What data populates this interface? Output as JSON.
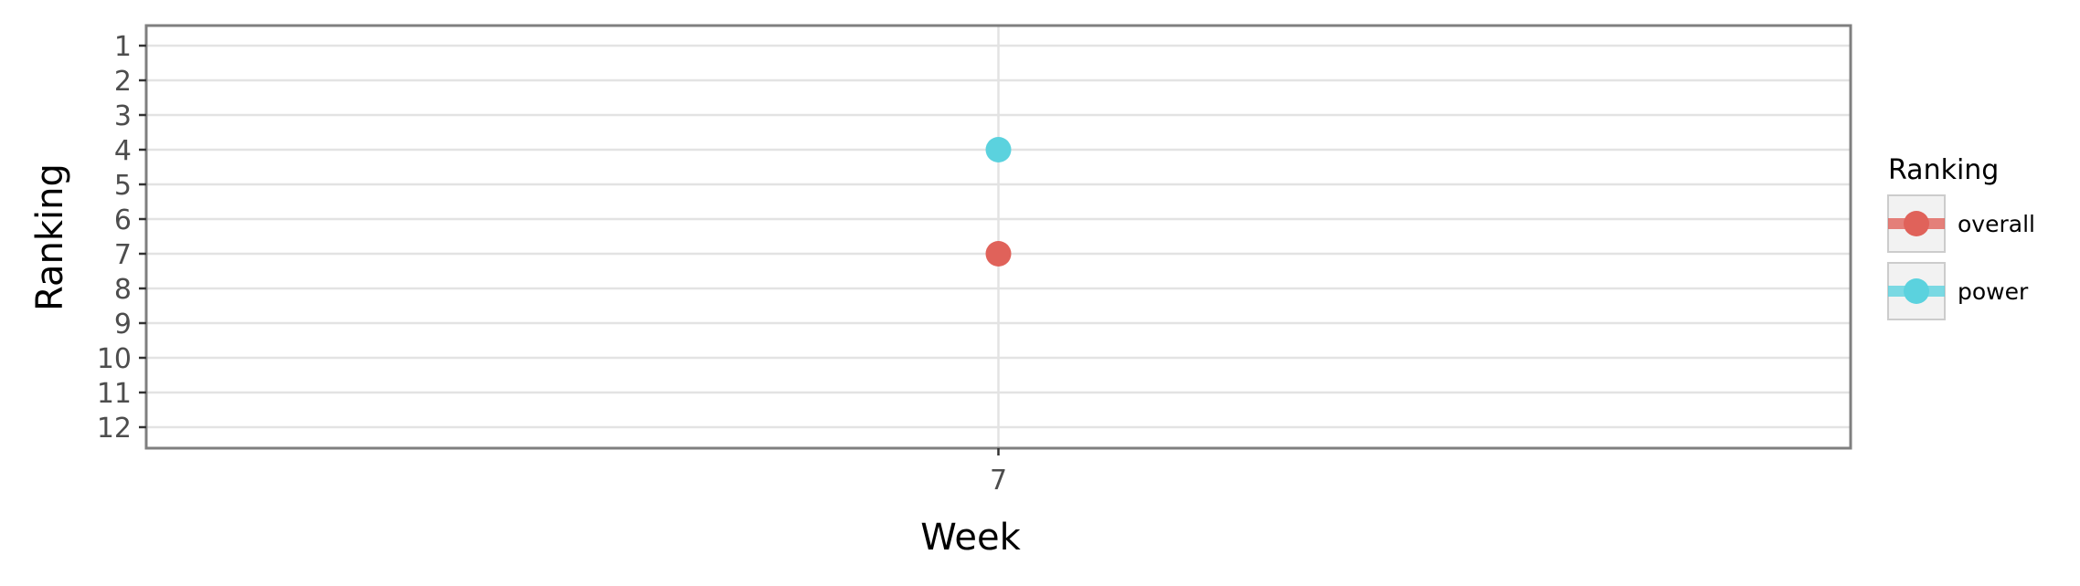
{
  "chart_data": {
    "type": "scatter",
    "xlabel": "Week",
    "ylabel": "Ranking",
    "x_categories": [
      "7"
    ],
    "y_ticks": [
      "1",
      "2",
      "3",
      "4",
      "5",
      "6",
      "7",
      "8",
      "9",
      "10",
      "11",
      "12"
    ],
    "ylim": [
      1,
      12
    ],
    "y_reversed": true,
    "grid": true,
    "legend": {
      "title": "Ranking",
      "placement": "right"
    },
    "series": [
      {
        "name": "overall",
        "color": "#e0625a",
        "points": [
          {
            "x": "7",
            "y": 7
          }
        ]
      },
      {
        "name": "power",
        "color": "#5bd2de",
        "points": [
          {
            "x": "7",
            "y": 4
          }
        ]
      }
    ]
  }
}
